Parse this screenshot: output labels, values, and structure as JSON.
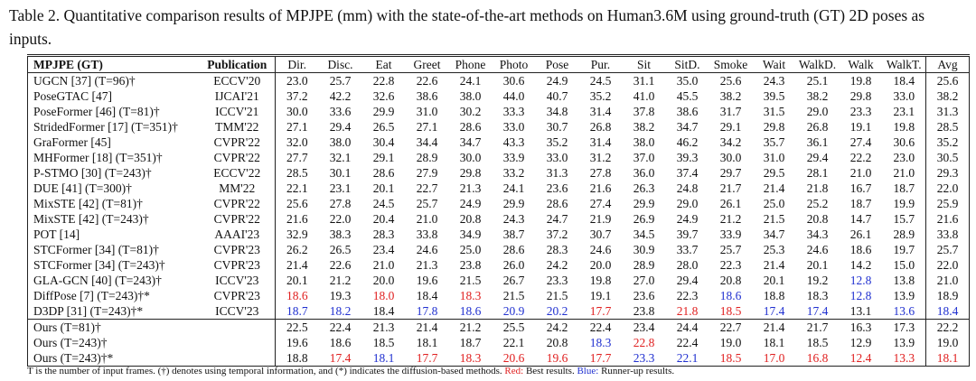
{
  "caption": "Table 2. Quantitative comparison results of MPJPE (mm) with the state-of-the-art methods on Human3.6M using ground-truth (GT) 2D poses as inputs.",
  "table": {
    "header": [
      "MPJPE (GT)",
      "Publication",
      "Dir.",
      "Disc.",
      "Eat",
      "Greet",
      "Phone",
      "Photo",
      "Pose",
      "Pur.",
      "Sit",
      "SitD.",
      "Smoke",
      "Wait",
      "WalkD.",
      "Walk",
      "WalkT.",
      "Avg"
    ],
    "rows": [
      {
        "method": "UGCN [37] (T=96)†",
        "publication": "ECCV'20",
        "values": [
          "23.0",
          "25.7",
          "22.8",
          "22.6",
          "24.1",
          "30.6",
          "24.9",
          "24.5",
          "31.1",
          "35.0",
          "25.6",
          "24.3",
          "25.1",
          "19.8",
          "18.4",
          "25.6"
        ]
      },
      {
        "method": "PoseGTAC [47]",
        "publication": "IJCAI'21",
        "values": [
          "37.2",
          "42.2",
          "32.6",
          "38.6",
          "38.0",
          "44.0",
          "40.7",
          "35.2",
          "41.0",
          "45.5",
          "38.2",
          "39.5",
          "38.2",
          "29.8",
          "33.0",
          "38.2"
        ]
      },
      {
        "method": "PoseFormer [46] (T=81)†",
        "publication": "ICCV'21",
        "values": [
          "30.0",
          "33.6",
          "29.9",
          "31.0",
          "30.2",
          "33.3",
          "34.8",
          "31.4",
          "37.8",
          "38.6",
          "31.7",
          "31.5",
          "29.0",
          "23.3",
          "23.1",
          "31.3"
        ]
      },
      {
        "method": "StridedFormer [17] (T=351)†",
        "publication": "TMM'22",
        "values": [
          "27.1",
          "29.4",
          "26.5",
          "27.1",
          "28.6",
          "33.0",
          "30.7",
          "26.8",
          "38.2",
          "34.7",
          "29.1",
          "29.8",
          "26.8",
          "19.1",
          "19.8",
          "28.5"
        ]
      },
      {
        "method": "GraFormer [45]",
        "publication": "CVPR'22",
        "values": [
          "32.0",
          "38.0",
          "30.4",
          "34.4",
          "34.7",
          "43.3",
          "35.2",
          "31.4",
          "38.0",
          "46.2",
          "34.2",
          "35.7",
          "36.1",
          "27.4",
          "30.6",
          "35.2"
        ]
      },
      {
        "method": "MHFormer [18] (T=351)†",
        "publication": "CVPR'22",
        "values": [
          "27.7",
          "32.1",
          "29.1",
          "28.9",
          "30.0",
          "33.9",
          "33.0",
          "31.2",
          "37.0",
          "39.3",
          "30.0",
          "31.0",
          "29.4",
          "22.2",
          "23.0",
          "30.5"
        ]
      },
      {
        "method": "P-STMO [30] (T=243)†",
        "publication": "ECCV'22",
        "values": [
          "28.5",
          "30.1",
          "28.6",
          "27.9",
          "29.8",
          "33.2",
          "31.3",
          "27.8",
          "36.0",
          "37.4",
          "29.7",
          "29.5",
          "28.1",
          "21.0",
          "21.0",
          "29.3"
        ]
      },
      {
        "method": "DUE [41] (T=300)†",
        "publication": "MM'22",
        "values": [
          "22.1",
          "23.1",
          "20.1",
          "22.7",
          "21.3",
          "24.1",
          "23.6",
          "21.6",
          "26.3",
          "24.8",
          "21.7",
          "21.4",
          "21.8",
          "16.7",
          "18.7",
          "22.0"
        ]
      },
      {
        "method": "MixSTE [42] (T=81)†",
        "publication": "CVPR'22",
        "values": [
          "25.6",
          "27.8",
          "24.5",
          "25.7",
          "24.9",
          "29.9",
          "28.6",
          "27.4",
          "29.9",
          "29.0",
          "26.1",
          "25.0",
          "25.2",
          "18.7",
          "19.9",
          "25.9"
        ]
      },
      {
        "method": "MixSTE [42] (T=243)†",
        "publication": "CVPR'22",
        "values": [
          "21.6",
          "22.0",
          "20.4",
          "21.0",
          "20.8",
          "24.3",
          "24.7",
          "21.9",
          "26.9",
          "24.9",
          "21.2",
          "21.5",
          "20.8",
          "14.7",
          "15.7",
          "21.6"
        ]
      },
      {
        "method": "POT [14]",
        "publication": "AAAI'23",
        "values": [
          "32.9",
          "38.3",
          "28.3",
          "33.8",
          "34.9",
          "38.7",
          "37.2",
          "30.7",
          "34.5",
          "39.7",
          "33.9",
          "34.7",
          "34.3",
          "26.1",
          "28.9",
          "33.8"
        ]
      },
      {
        "method": "STCFormer [34] (T=81)†",
        "publication": "CVPR'23",
        "values": [
          "26.2",
          "26.5",
          "23.4",
          "24.6",
          "25.0",
          "28.6",
          "28.3",
          "24.6",
          "30.9",
          "33.7",
          "25.7",
          "25.3",
          "24.6",
          "18.6",
          "19.7",
          "25.7"
        ]
      },
      {
        "method": "STCFormer [34] (T=243)†",
        "publication": "CVPR'23",
        "values": [
          "21.4",
          "22.6",
          "21.0",
          "21.3",
          "23.8",
          "26.0",
          "24.2",
          "20.0",
          "28.9",
          "28.0",
          "22.3",
          "21.4",
          "20.1",
          "14.2",
          "15.0",
          "22.0"
        ]
      },
      {
        "method": "GLA-GCN [40] (T=243)†",
        "publication": "ICCV'23",
        "values": [
          "20.1",
          "21.2",
          "20.0",
          "19.6",
          "21.5",
          "26.7",
          "23.3",
          "19.8",
          "27.0",
          "29.4",
          "20.8",
          "20.1",
          "19.2",
          "12.8",
          "13.8",
          "21.0"
        ],
        "runner_up": [
          13
        ]
      },
      {
        "method": "DiffPose [7] (T=243)†*",
        "publication": "CVPR'23",
        "values": [
          "18.6",
          "19.3",
          "18.0",
          "18.4",
          "18.3",
          "21.5",
          "21.5",
          "19.1",
          "23.6",
          "22.3",
          "18.6",
          "18.8",
          "18.3",
          "12.8",
          "13.9",
          "18.9"
        ],
        "best": [
          0,
          2,
          4
        ],
        "runner_up": [
          10,
          13
        ]
      },
      {
        "method": "D3DP [31] (T=243)†*",
        "publication": "ICCV'23",
        "values": [
          "18.7",
          "18.2",
          "18.4",
          "17.8",
          "18.6",
          "20.9",
          "20.2",
          "17.7",
          "23.8",
          "21.8",
          "18.5",
          "17.4",
          "17.4",
          "13.1",
          "13.6",
          "18.4"
        ],
        "best": [
          7,
          9,
          10
        ],
        "runner_up": [
          0,
          1,
          3,
          4,
          5,
          6,
          11,
          12,
          14,
          15
        ]
      },
      {
        "method": "Ours (T=81)†",
        "values": [
          "22.5",
          "22.4",
          "21.3",
          "21.4",
          "21.2",
          "25.5",
          "24.2",
          "22.4",
          "23.4",
          "24.4",
          "22.7",
          "21.4",
          "21.7",
          "16.3",
          "17.3",
          "22.2"
        ]
      },
      {
        "method": "Ours (T=243)†",
        "values": [
          "19.6",
          "18.6",
          "18.5",
          "18.1",
          "18.7",
          "22.1",
          "20.8",
          "18.3",
          "22.8",
          "22.4",
          "19.0",
          "18.1",
          "18.5",
          "12.9",
          "13.9",
          "19.0"
        ],
        "best": [
          8
        ],
        "runner_up": [
          7
        ]
      },
      {
        "method": "Ours (T=243)†*",
        "values": [
          "18.8",
          "17.4",
          "18.1",
          "17.7",
          "18.3",
          "20.6",
          "19.6",
          "17.7",
          "23.3",
          "22.1",
          "18.5",
          "17.0",
          "16.8",
          "12.4",
          "13.3",
          "18.1"
        ],
        "best": [
          1,
          3,
          4,
          5,
          6,
          7,
          10,
          11,
          12,
          13,
          14,
          15
        ],
        "runner_up": [
          2,
          8,
          9
        ]
      }
    ],
    "section_break_before": 16
  },
  "footnote": {
    "text": "T is the number of input frames. (†) denotes using temporal information, and (*) indicates the diffusion-based methods.",
    "best_label": "Red:",
    "best_text": "Best results.",
    "runner_label": "Blue:",
    "runner_text": "Runner-up results."
  }
}
